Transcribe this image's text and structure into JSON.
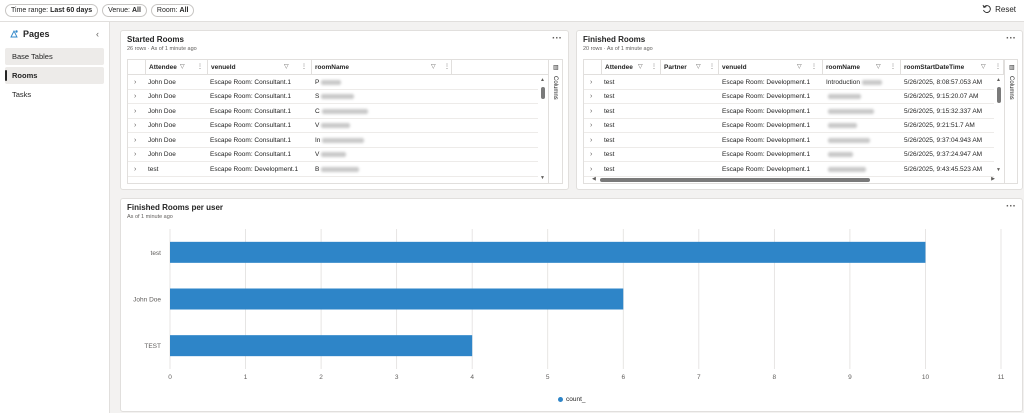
{
  "filters": [
    {
      "label": "Time range:",
      "value": "Last 60 days"
    },
    {
      "label": "Venue:",
      "value": "All"
    },
    {
      "label": "Room:",
      "value": "All"
    }
  ],
  "reset_label": "Reset",
  "sidebar": {
    "title": "Pages",
    "items": [
      {
        "label": "Base Tables"
      },
      {
        "label": "Rooms"
      },
      {
        "label": "Tasks"
      }
    ]
  },
  "started": {
    "title": "Started Rooms",
    "subtitle": "26 rows · As of 1 minute ago",
    "columns": [
      "Attendee",
      "venueId",
      "roomName"
    ],
    "rows": [
      [
        "John Doe",
        "Escape Room: Consultant.1",
        "P"
      ],
      [
        "John Doe",
        "Escape Room: Consultant.1",
        "S"
      ],
      [
        "John Doe",
        "Escape Room: Consultant.1",
        "C"
      ],
      [
        "John Doe",
        "Escape Room: Consultant.1",
        "V"
      ],
      [
        "John Doe",
        "Escape Room: Consultant.1",
        "In"
      ],
      [
        "John Doe",
        "Escape Room: Consultant.1",
        "V"
      ],
      [
        "test",
        "Escape Room: Development.1",
        "B"
      ]
    ],
    "columns_panel": "Columns"
  },
  "finished": {
    "title": "Finished Rooms",
    "subtitle": "20 rows · As of 1 minute ago",
    "columns": [
      "Attendee",
      "Partner",
      "venueId",
      "roomName",
      "roomStartDateTime"
    ],
    "rows": [
      [
        "test",
        "",
        "Escape Room: Development.1",
        "Introduction",
        "5/26/2025, 8:08:57.053 AM"
      ],
      [
        "test",
        "",
        "Escape Room: Development.1",
        "",
        "5/26/2025, 9:15:20.07 AM"
      ],
      [
        "test",
        "",
        "Escape Room: Development.1",
        "",
        "5/26/2025, 9:15:32.337 AM"
      ],
      [
        "test",
        "",
        "Escape Room: Development.1",
        "",
        "5/26/2025, 9:21:51.7 AM"
      ],
      [
        "test",
        "",
        "Escape Room: Development.1",
        "",
        "5/26/2025, 9:37:04.943 AM"
      ],
      [
        "test",
        "",
        "Escape Room: Development.1",
        "",
        "5/26/2025, 9:37:24.947 AM"
      ],
      [
        "test",
        "",
        "Escape Room: Development.1",
        "",
        "5/26/2025, 9:43:45.523 AM"
      ]
    ],
    "columns_panel": "Columns"
  },
  "chart_card": {
    "title": "Finished Rooms per user",
    "subtitle": "As of 1 minute ago"
  },
  "chart_data": {
    "type": "bar",
    "orientation": "horizontal",
    "categories": [
      "test",
      "John Doe",
      "TEST"
    ],
    "series": [
      {
        "name": "count_",
        "values": [
          10,
          6,
          4
        ],
        "color": "#2e85c8"
      }
    ],
    "xlim": [
      0,
      11
    ],
    "xticks": [
      0,
      1,
      2,
      3,
      4,
      5,
      6,
      7,
      8,
      9,
      10,
      11
    ],
    "grid": true,
    "legend": "bottom-center"
  }
}
